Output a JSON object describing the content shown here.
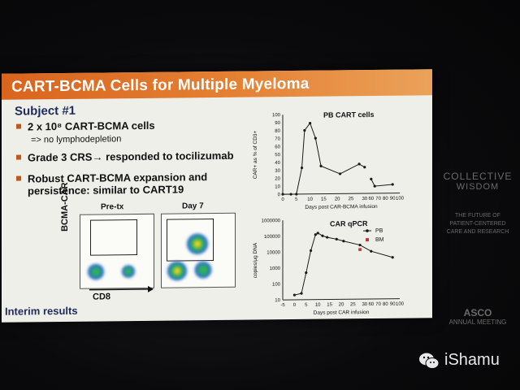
{
  "slide": {
    "title": "CART-BCMA Cells for Multiple Myeloma",
    "subject": "Subject #1",
    "bullets": [
      "2 x 10⁸ CART-BCMA cells",
      "Grade 3 CRS→ responded to tocilizumab",
      "Robust CART-BCMA expansion and",
      "persistence: similar to CART19"
    ],
    "subbullet": "=> no lymphodepletion",
    "interim": "Interim results",
    "flow": {
      "pre_label": "Pre-tx",
      "day7_label": "Day 7",
      "y_label": "BCMA-CAR",
      "x_label": "CD8"
    }
  },
  "side": {
    "line1": "COLLECTIVE",
    "line2": "WISDOM",
    "line3": "THE FUTURE OF",
    "line4": "PATIENT-CENTERED",
    "line5": "CARE AND RESEARCH",
    "line6": "ASCO",
    "line7": "ANNUAL MEETING"
  },
  "watermark": {
    "text": "iShamu"
  },
  "chart_data": [
    {
      "type": "line",
      "title": "PB CART cells",
      "xlabel": "Days post CAR-BCMA infusion",
      "ylabel": "CAR+ as % of CD3+",
      "ylim": [
        0,
        100
      ],
      "yticks": [
        "0",
        "10",
        "20",
        "30",
        "40",
        "50",
        "60",
        "70",
        "80",
        "90",
        "100"
      ],
      "xticks": [
        "0",
        "5",
        "10",
        "15",
        "20",
        "25",
        "30",
        "60",
        "70",
        "80",
        "90",
        "100"
      ],
      "series": [
        {
          "x": [
            0,
            3,
            5,
            7,
            8,
            10,
            12,
            14,
            21,
            28,
            30
          ],
          "y": [
            0,
            0,
            0,
            33,
            80,
            89,
            70,
            35,
            25,
            37,
            33
          ]
        },
        {
          "x": [
            60,
            65,
            90
          ],
          "y": [
            18,
            9,
            11
          ]
        }
      ]
    },
    {
      "type": "line",
      "title": "CAR qPCR",
      "xlabel": "Days post CAR infusion",
      "ylabel": "copies/µg DNA",
      "scale": "log",
      "ylim": [
        10,
        1000000
      ],
      "yticks": [
        "10",
        "100",
        "1000",
        "10000",
        "100000",
        "1000000"
      ],
      "xticks": [
        "-5",
        "0",
        "5",
        "10",
        "15",
        "20",
        "25",
        "30",
        "60",
        "70",
        "80",
        "90",
        "100"
      ],
      "series": [
        {
          "name": "PB",
          "x": [
            0,
            3,
            5,
            7,
            9,
            10,
            12,
            14,
            18,
            21,
            28,
            60,
            90
          ],
          "y": [
            20,
            25,
            500,
            12000,
            120000,
            150000,
            100000,
            80000,
            60000,
            45000,
            25000,
            10000,
            4000
          ]
        },
        {
          "name": "BM",
          "x": [
            28
          ],
          "y": [
            13000
          ]
        }
      ],
      "legend": "top-right"
    }
  ]
}
